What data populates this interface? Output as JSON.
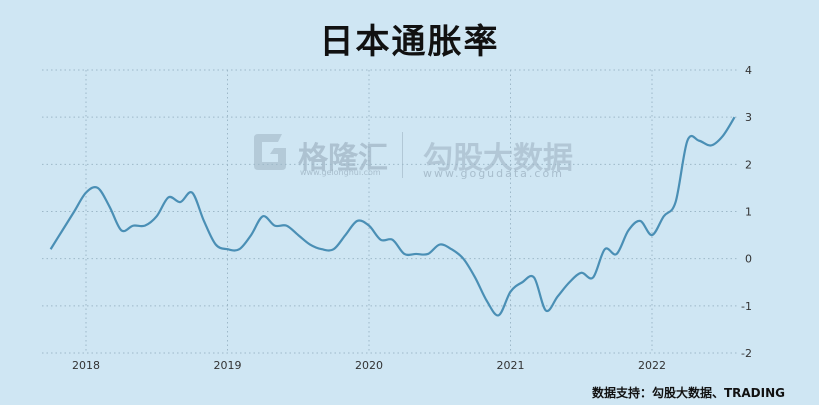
{
  "title": "日本通胀率",
  "source": "数据支持：勾股大数据、TRADING",
  "watermark": {
    "brand1": "格隆汇",
    "brand1_sub": "www.gelonghui.com",
    "brand2": "勾股大数据",
    "brand2_sub": "www.gogudata.com"
  },
  "chart_data": {
    "type": "line",
    "title": "日本通胀率",
    "xlabel": "",
    "ylabel": "",
    "ylim": [
      -2,
      4
    ],
    "y_ticks": [
      "4",
      "3",
      "2",
      "1",
      "0",
      "-1",
      "-2"
    ],
    "x_ticks": [
      "2018",
      "2019",
      "2020",
      "2021",
      "2022"
    ],
    "grid": true,
    "series": [
      {
        "values": [
          {
            "x": "2017-10",
            "y": 0.2
          },
          {
            "x": "2017-11",
            "y": 0.6
          },
          {
            "x": "2017-12",
            "y": 1.0
          },
          {
            "x": "2018-01",
            "y": 1.4
          },
          {
            "x": "2018-02",
            "y": 1.5
          },
          {
            "x": "2018-03",
            "y": 1.1
          },
          {
            "x": "2018-04",
            "y": 0.6
          },
          {
            "x": "2018-05",
            "y": 0.7
          },
          {
            "x": "2018-06",
            "y": 0.7
          },
          {
            "x": "2018-07",
            "y": 0.9
          },
          {
            "x": "2018-08",
            "y": 1.3
          },
          {
            "x": "2018-09",
            "y": 1.2
          },
          {
            "x": "2018-10",
            "y": 1.4
          },
          {
            "x": "2018-11",
            "y": 0.8
          },
          {
            "x": "2018-12",
            "y": 0.3
          },
          {
            "x": "2019-01",
            "y": 0.2
          },
          {
            "x": "2019-02",
            "y": 0.2
          },
          {
            "x": "2019-03",
            "y": 0.5
          },
          {
            "x": "2019-04",
            "y": 0.9
          },
          {
            "x": "2019-05",
            "y": 0.7
          },
          {
            "x": "2019-06",
            "y": 0.7
          },
          {
            "x": "2019-07",
            "y": 0.5
          },
          {
            "x": "2019-08",
            "y": 0.3
          },
          {
            "x": "2019-09",
            "y": 0.2
          },
          {
            "x": "2019-10",
            "y": 0.2
          },
          {
            "x": "2019-11",
            "y": 0.5
          },
          {
            "x": "2019-12",
            "y": 0.8
          },
          {
            "x": "2020-01",
            "y": 0.7
          },
          {
            "x": "2020-02",
            "y": 0.4
          },
          {
            "x": "2020-03",
            "y": 0.4
          },
          {
            "x": "2020-04",
            "y": 0.1
          },
          {
            "x": "2020-05",
            "y": 0.1
          },
          {
            "x": "2020-06",
            "y": 0.1
          },
          {
            "x": "2020-07",
            "y": 0.3
          },
          {
            "x": "2020-08",
            "y": 0.2
          },
          {
            "x": "2020-09",
            "y": 0.0
          },
          {
            "x": "2020-10",
            "y": -0.4
          },
          {
            "x": "2020-11",
            "y": -0.9
          },
          {
            "x": "2020-12",
            "y": -1.2
          },
          {
            "x": "2021-01",
            "y": -0.7
          },
          {
            "x": "2021-02",
            "y": -0.5
          },
          {
            "x": "2021-03",
            "y": -0.4
          },
          {
            "x": "2021-04",
            "y": -1.1
          },
          {
            "x": "2021-05",
            "y": -0.8
          },
          {
            "x": "2021-06",
            "y": -0.5
          },
          {
            "x": "2021-07",
            "y": -0.3
          },
          {
            "x": "2021-08",
            "y": -0.4
          },
          {
            "x": "2021-09",
            "y": 0.2
          },
          {
            "x": "2021-10",
            "y": 0.1
          },
          {
            "x": "2021-11",
            "y": 0.6
          },
          {
            "x": "2021-12",
            "y": 0.8
          },
          {
            "x": "2022-01",
            "y": 0.5
          },
          {
            "x": "2022-02",
            "y": 0.9
          },
          {
            "x": "2022-03",
            "y": 1.2
          },
          {
            "x": "2022-04",
            "y": 2.5
          },
          {
            "x": "2022-05",
            "y": 2.5
          },
          {
            "x": "2022-06",
            "y": 2.4
          },
          {
            "x": "2022-07",
            "y": 2.6
          },
          {
            "x": "2022-08",
            "y": 3.0
          }
        ]
      }
    ],
    "colors": {
      "background": "#cfe6f3",
      "line": "#4a8fb5",
      "grid": "#9db8c8",
      "text": "#333333"
    }
  }
}
